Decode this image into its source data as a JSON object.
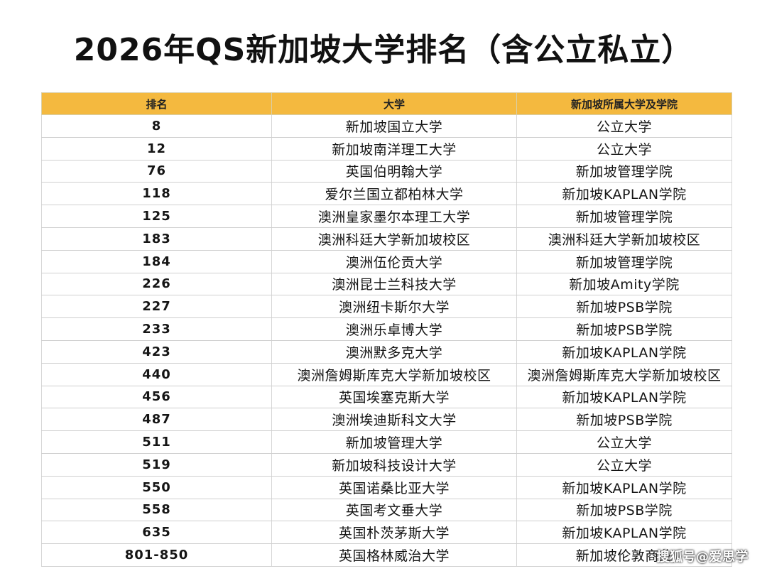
{
  "title": "2026年QS新加坡大学排名（含公立私立）",
  "table": {
    "header_color": "#f4b93f",
    "columns": [
      "排名",
      "大学",
      "新加坡所属大学及学院"
    ],
    "rows": [
      {
        "rank": "8",
        "university": "新加坡国立大学",
        "affiliate": "公立大学"
      },
      {
        "rank": "12",
        "university": "新加坡南洋理工大学",
        "affiliate": "公立大学"
      },
      {
        "rank": "76",
        "university": "英国伯明翰大学",
        "affiliate": "新加坡管理学院"
      },
      {
        "rank": "118",
        "university": "爱尔兰国立都柏林大学",
        "affiliate": "新加坡KAPLAN学院"
      },
      {
        "rank": "125",
        "university": "澳洲皇家墨尔本理工大学",
        "affiliate": "新加坡管理学院"
      },
      {
        "rank": "183",
        "university": "澳洲科廷大学新加坡校区",
        "affiliate": "澳洲科廷大学新加坡校区"
      },
      {
        "rank": "184",
        "university": "澳洲伍伦贡大学",
        "affiliate": "新加坡管理学院"
      },
      {
        "rank": "226",
        "university": "澳洲昆士兰科技大学",
        "affiliate": "新加坡Amity学院"
      },
      {
        "rank": "227",
        "university": "澳洲纽卡斯尔大学",
        "affiliate": "新加坡PSB学院"
      },
      {
        "rank": "233",
        "university": "澳洲乐卓博大学",
        "affiliate": "新加坡PSB学院"
      },
      {
        "rank": "423",
        "university": "澳洲默多克大学",
        "affiliate": "新加坡KAPLAN学院"
      },
      {
        "rank": "440",
        "university": "澳洲詹姆斯库克大学新加坡校区",
        "affiliate": "澳洲詹姆斯库克大学新加坡校区"
      },
      {
        "rank": "456",
        "university": "英国埃塞克斯大学",
        "affiliate": "新加坡KAPLAN学院"
      },
      {
        "rank": "487",
        "university": "澳洲埃迪斯科文大学",
        "affiliate": "新加坡PSB学院"
      },
      {
        "rank": "511",
        "university": "新加坡管理大学",
        "affiliate": "公立大学"
      },
      {
        "rank": "519",
        "university": "新加坡科技设计大学",
        "affiliate": "公立大学"
      },
      {
        "rank": "550",
        "university": "英国诺桑比亚大学",
        "affiliate": "新加坡KAPLAN学院"
      },
      {
        "rank": "558",
        "university": "英国考文垂大学",
        "affiliate": "新加坡PSB学院"
      },
      {
        "rank": "635",
        "university": "英国朴茨茅斯大学",
        "affiliate": "新加坡KAPLAN学院"
      },
      {
        "rank": "801-850",
        "university": "英国格林威治大学",
        "affiliate": "新加坡伦敦商业"
      }
    ]
  },
  "watermark": "搜狐号@爱思学"
}
